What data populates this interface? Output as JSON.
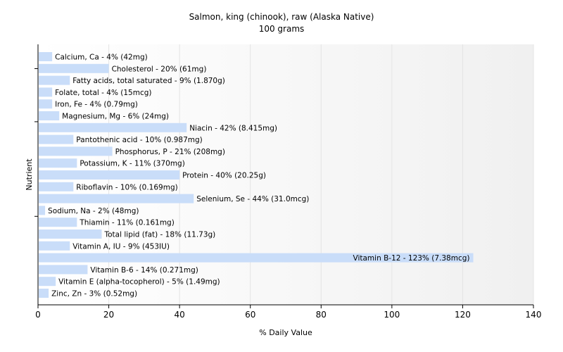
{
  "chart_data": {
    "type": "bar",
    "orientation": "horizontal",
    "title": "Salmon, king (chinook), raw (Alaska Native)",
    "subtitle": "100 grams",
    "xlabel": "% Daily Value",
    "ylabel": "Nutrient",
    "xlim": [
      0,
      140
    ],
    "xticks": [
      0,
      20,
      40,
      60,
      80,
      100,
      120,
      140
    ],
    "grid": "vertical",
    "bar_color": "#c9ddf9",
    "categories": [
      "Calcium, Ca",
      "Cholesterol",
      "Fatty acids, total saturated",
      "Folate, total",
      "Iron, Fe",
      "Magnesium, Mg",
      "Niacin",
      "Pantothenic acid",
      "Phosphorus, P",
      "Potassium, K",
      "Protein",
      "Riboflavin",
      "Selenium, Se",
      "Sodium, Na",
      "Thiamin",
      "Total lipid (fat)",
      "Vitamin A, IU",
      "Vitamin B-12",
      "Vitamin B-6",
      "Vitamin E (alpha-tocopherol)",
      "Zinc, Zn"
    ],
    "values": [
      4,
      20,
      9,
      4,
      4,
      6,
      42,
      10,
      21,
      11,
      40,
      10,
      44,
      2,
      11,
      18,
      9,
      123,
      14,
      5,
      3
    ],
    "labels": [
      "Calcium, Ca - 4% (42mg)",
      "Cholesterol - 20% (61mg)",
      "Fatty acids, total saturated - 9% (1.870g)",
      "Folate, total - 4% (15mcg)",
      "Iron, Fe - 4% (0.79mg)",
      "Magnesium, Mg - 6% (24mg)",
      "Niacin - 42% (8.415mg)",
      "Pantothenic acid - 10% (0.987mg)",
      "Phosphorus, P - 21% (208mg)",
      "Potassium, K - 11% (370mg)",
      "Protein - 40% (20.25g)",
      "Riboflavin - 10% (0.169mg)",
      "Selenium, Se - 44% (31.0mcg)",
      "Sodium, Na - 2% (48mg)",
      "Thiamin - 11% (0.161mg)",
      "Total lipid (fat) - 18% (11.73g)",
      "Vitamin A, IU - 9% (453IU)",
      "Vitamin B-12 - 123% (7.38mcg)",
      "Vitamin B-6 - 14% (0.271mg)",
      "Vitamin E (alpha-tocopherol) - 5% (1.49mg)",
      "Zinc, Zn - 3% (0.52mg)"
    ]
  }
}
